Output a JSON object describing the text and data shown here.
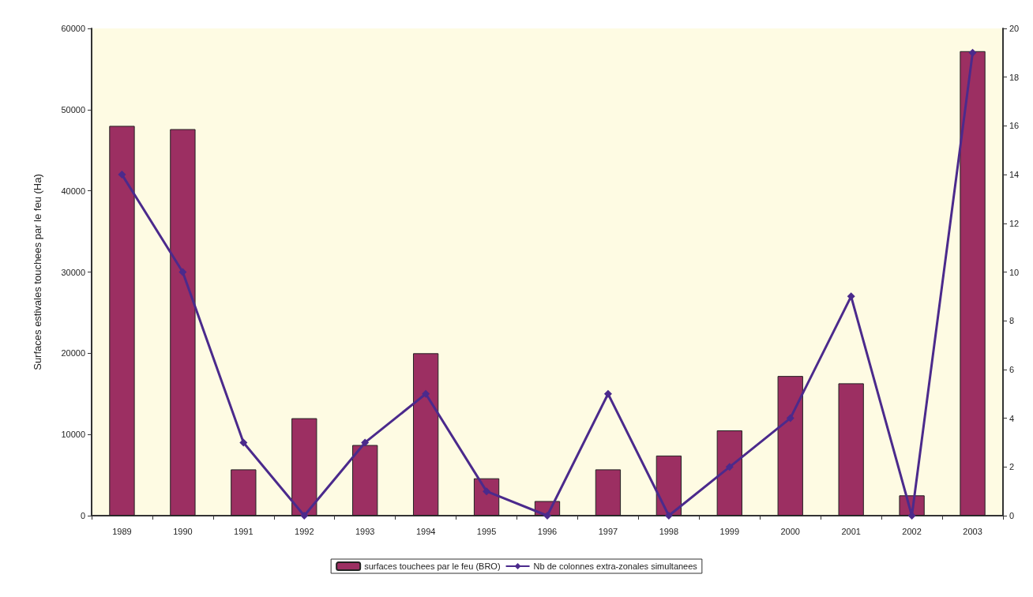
{
  "chart_data": {
    "type": "bar",
    "ylabel": "Surfaces estivales touchees par le feu (Ha)",
    "categories": [
      "1989",
      "1990",
      "1991",
      "1992",
      "1993",
      "1994",
      "1995",
      "1996",
      "1997",
      "1998",
      "1999",
      "2000",
      "2001",
      "2002",
      "2003"
    ],
    "series": [
      {
        "name": "surfaces touchees par le feu (BRO)",
        "color": "#9c2f62",
        "values": [
          48000,
          47600,
          5700,
          12000,
          8700,
          20000,
          4600,
          1800,
          5700,
          7400,
          10500,
          17200,
          16300,
          2500,
          57200
        ]
      },
      {
        "name": "Nb de colonnes extra-zonales simultanees",
        "type": "line",
        "axis": "y2",
        "color": "#4b2a8c",
        "values": [
          14,
          10,
          3,
          0,
          3,
          5,
          1,
          0,
          5,
          0,
          2,
          4,
          9,
          0,
          19
        ]
      }
    ],
    "ylim": [
      0,
      60000
    ],
    "yticks": [
      0,
      10000,
      20000,
      30000,
      40000,
      50000,
      60000
    ],
    "y2lim": [
      0,
      20
    ],
    "y2ticks": [
      0,
      2,
      4,
      6,
      8,
      10,
      12,
      14,
      16,
      18,
      20
    ],
    "grid": false,
    "legend": "bottom",
    "marker": "diamond",
    "line_style": "solid"
  }
}
